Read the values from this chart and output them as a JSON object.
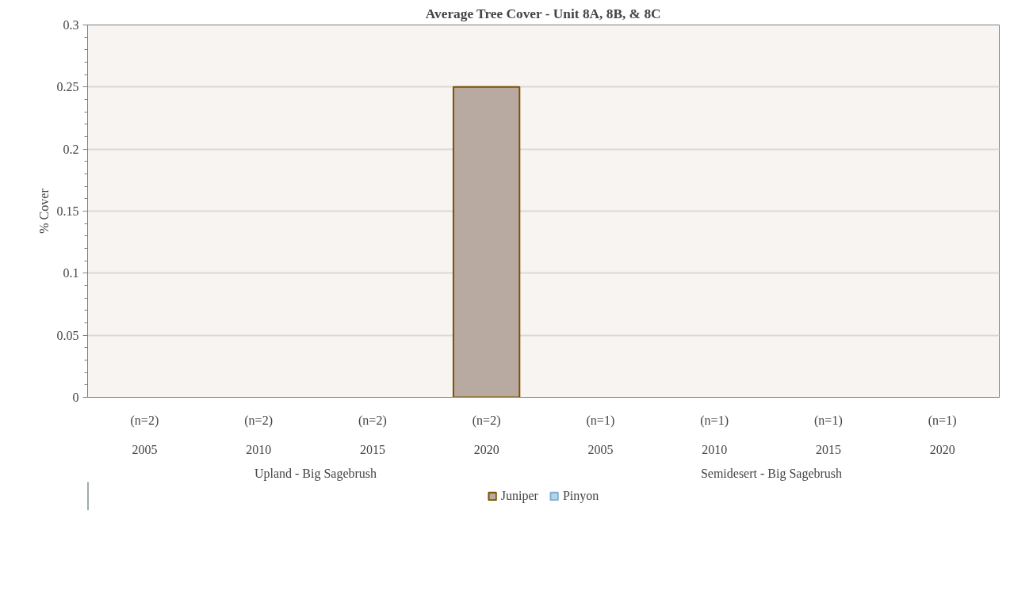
{
  "chart_data": {
    "type": "bar",
    "title": "Average Tree Cover - Unit 8A, 8B, & 8C",
    "ylabel": "% Cover",
    "categories": [
      "(n=2)\n2005",
      "(n=2)\n2010",
      "(n=2)\n2015",
      "(n=2)\n2020",
      "(n=1)\n2005",
      "(n=1)\n2010",
      "(n=1)\n2015",
      "(n=1)\n2020"
    ],
    "annotations": [
      "Upland - Big Sagebrush",
      "Semidesert - Big Sagebrush"
    ],
    "stacked": true,
    "series": [
      {
        "name": "Juniper",
        "color": "#b8aaa0",
        "values": [
          0,
          0,
          0,
          0.25,
          0,
          0,
          0,
          0
        ]
      },
      {
        "name": "Pinyon",
        "color": "#b4d4e8",
        "values": [
          0,
          0,
          0,
          0,
          0,
          0,
          0,
          0
        ]
      }
    ],
    "ylim": [
      0,
      0.3
    ],
    "yticks": [
      0,
      0.05,
      0.1,
      0.15,
      0.2,
      0.25,
      0.3
    ],
    "grid": "y",
    "legend": "bottom"
  }
}
